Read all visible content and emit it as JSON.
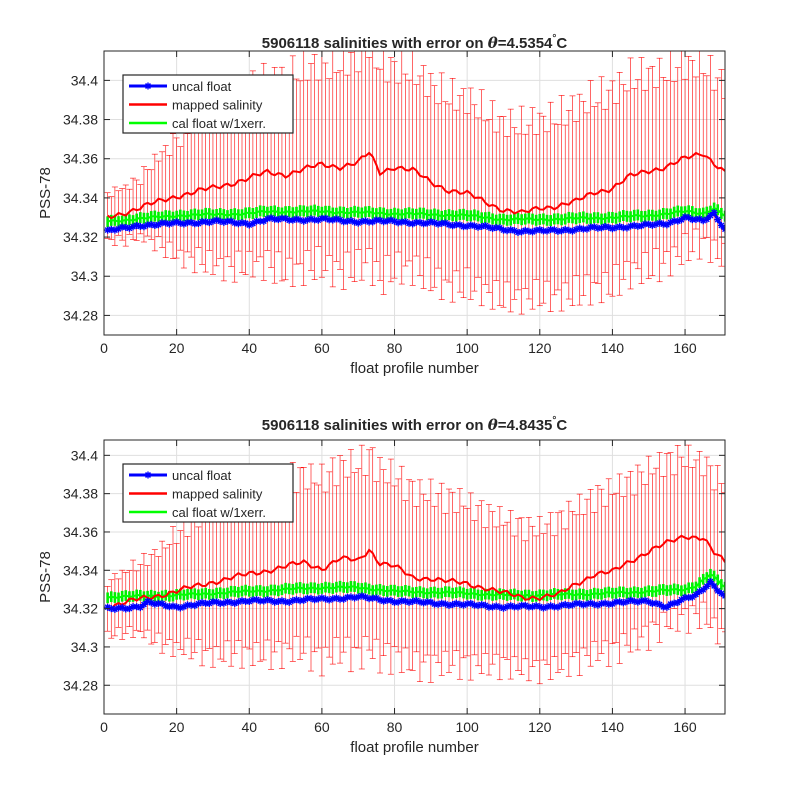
{
  "chart_data": [
    {
      "type": "line",
      "title_prefix": "5906118 salinities with error on ",
      "title_symbol": "θ",
      "title_suffix": "=4.5354",
      "title_degree": "°",
      "title_unit": "C",
      "xlabel": "float profile number",
      "ylabel": "PSS-78",
      "xlim": [
        0,
        171
      ],
      "ylim": [
        34.27,
        34.415
      ],
      "xticks": [
        0,
        20,
        40,
        60,
        80,
        100,
        120,
        140,
        160
      ],
      "yticks": [
        34.28,
        34.3,
        34.32,
        34.34,
        34.36,
        34.38,
        34.4
      ],
      "ytick_labels": [
        "34.28",
        "34.3",
        "34.32",
        "34.34",
        "34.36",
        "34.38",
        "34.4"
      ],
      "grid": true,
      "legend_position": "top-left",
      "legend": [
        "uncal float",
        "mapped salinity",
        "cal float w/1xerr."
      ],
      "colors": {
        "uncal": "#0000ff",
        "mapped": "#ff0000",
        "cal": "#00ff00"
      },
      "profiles": [
        1,
        171
      ],
      "series": [
        {
          "name": "uncal float",
          "x": [
            1,
            10,
            20,
            30,
            40,
            45,
            50,
            60,
            70,
            80,
            90,
            100,
            105,
            110,
            115,
            120,
            130,
            140,
            150,
            155,
            160,
            165,
            168,
            171
          ],
          "y": [
            34.323,
            34.326,
            34.327,
            34.328,
            34.327,
            34.329,
            34.329,
            34.329,
            34.328,
            34.328,
            34.327,
            34.326,
            34.325,
            34.324,
            34.323,
            34.323,
            34.324,
            34.325,
            34.326,
            34.327,
            34.33,
            34.328,
            34.332,
            34.324
          ]
        },
        {
          "name": "mapped salinity",
          "x": [
            1,
            10,
            15,
            20,
            30,
            40,
            45,
            50,
            60,
            65,
            70,
            73,
            76,
            80,
            85,
            90,
            95,
            100,
            105,
            110,
            115,
            120,
            125,
            130,
            135,
            140,
            145,
            150,
            155,
            160,
            165,
            168,
            171
          ],
          "y": [
            34.33,
            34.335,
            34.338,
            34.341,
            34.345,
            34.35,
            34.353,
            34.352,
            34.357,
            34.356,
            34.358,
            34.363,
            34.353,
            34.356,
            34.354,
            34.348,
            34.344,
            34.342,
            34.338,
            34.334,
            34.332,
            34.335,
            34.336,
            34.338,
            34.343,
            34.345,
            34.351,
            34.354,
            34.356,
            34.36,
            34.363,
            34.358,
            34.353
          ]
        },
        {
          "name": "cal float w/1xerr.",
          "x": [
            1,
            20,
            40,
            45,
            60,
            80,
            100,
            110,
            120,
            140,
            150,
            160,
            165,
            168,
            171
          ],
          "y": [
            34.328,
            34.331,
            34.332,
            34.333,
            34.333,
            34.332,
            34.331,
            34.329,
            34.329,
            34.33,
            34.331,
            34.333,
            34.332,
            34.335,
            34.331
          ]
        },
        {
          "name": "mapped salinity error",
          "x": [
            1,
            10,
            20,
            30,
            40,
            50,
            60,
            70,
            75,
            80,
            90,
            100,
            110,
            120,
            130,
            140,
            150,
            160,
            165,
            171
          ],
          "y": [
            0.012,
            0.015,
            0.03,
            0.04,
            0.045,
            0.05,
            0.052,
            0.055,
            0.056,
            0.052,
            0.05,
            0.048,
            0.045,
            0.045,
            0.048,
            0.05,
            0.05,
            0.048,
            0.045,
            0.045
          ]
        }
      ]
    },
    {
      "type": "line",
      "title_prefix": "5906118 salinities with error on ",
      "title_symbol": "θ",
      "title_suffix": "=4.8435",
      "title_degree": "°",
      "title_unit": "C",
      "xlabel": "float profile number",
      "ylabel": "PSS-78",
      "xlim": [
        0,
        171
      ],
      "ylim": [
        34.265,
        34.408
      ],
      "xticks": [
        0,
        20,
        40,
        60,
        80,
        100,
        120,
        140,
        160
      ],
      "yticks": [
        34.28,
        34.3,
        34.32,
        34.34,
        34.36,
        34.38,
        34.4
      ],
      "ytick_labels": [
        "34.28",
        "34.3",
        "34.32",
        "34.34",
        "34.36",
        "34.38",
        "34.4"
      ],
      "grid": true,
      "legend_position": "top-left",
      "legend": [
        "uncal float",
        "mapped salinity",
        "cal float w/1xerr."
      ],
      "colors": {
        "uncal": "#0000ff",
        "mapped": "#ff0000",
        "cal": "#00ff00"
      },
      "profiles": [
        1,
        171
      ],
      "series": [
        {
          "name": "uncal float",
          "x": [
            1,
            10,
            12,
            20,
            30,
            40,
            50,
            60,
            70,
            80,
            90,
            100,
            110,
            120,
            130,
            140,
            150,
            155,
            160,
            163,
            167,
            171
          ],
          "y": [
            34.32,
            34.321,
            34.323,
            34.321,
            34.323,
            34.324,
            34.324,
            34.325,
            34.326,
            34.324,
            34.323,
            34.322,
            34.321,
            34.321,
            34.322,
            34.323,
            34.324,
            34.321,
            34.325,
            34.327,
            34.334,
            34.326
          ]
        },
        {
          "name": "mapped salinity",
          "x": [
            1,
            10,
            20,
            30,
            40,
            50,
            55,
            60,
            65,
            70,
            73,
            76,
            80,
            85,
            90,
            95,
            100,
            105,
            110,
            115,
            120,
            125,
            130,
            135,
            140,
            145,
            150,
            155,
            160,
            165,
            168,
            171
          ],
          "y": [
            34.321,
            34.325,
            34.329,
            34.334,
            34.338,
            34.342,
            34.344,
            34.341,
            34.346,
            34.345,
            34.351,
            34.344,
            34.342,
            34.336,
            34.336,
            34.334,
            34.333,
            34.331,
            34.328,
            34.326,
            34.326,
            34.327,
            34.333,
            34.338,
            34.339,
            34.345,
            34.35,
            34.354,
            34.358,
            34.357,
            34.349,
            34.344
          ]
        },
        {
          "name": "cal float w/1xerr.",
          "x": [
            1,
            20,
            40,
            60,
            70,
            80,
            100,
            110,
            120,
            140,
            150,
            160,
            163,
            167,
            171
          ],
          "y": [
            34.326,
            34.327,
            34.329,
            34.331,
            34.331,
            34.329,
            34.328,
            34.327,
            34.327,
            34.328,
            34.329,
            34.33,
            34.332,
            34.338,
            34.331
          ]
        },
        {
          "name": "mapped salinity error",
          "x": [
            1,
            10,
            20,
            30,
            40,
            50,
            60,
            70,
            75,
            80,
            90,
            100,
            110,
            120,
            130,
            140,
            150,
            160,
            165,
            171
          ],
          "y": [
            0.014,
            0.018,
            0.03,
            0.038,
            0.042,
            0.045,
            0.047,
            0.05,
            0.05,
            0.047,
            0.045,
            0.042,
            0.038,
            0.037,
            0.04,
            0.042,
            0.043,
            0.042,
            0.04,
            0.04
          ]
        }
      ]
    }
  ]
}
